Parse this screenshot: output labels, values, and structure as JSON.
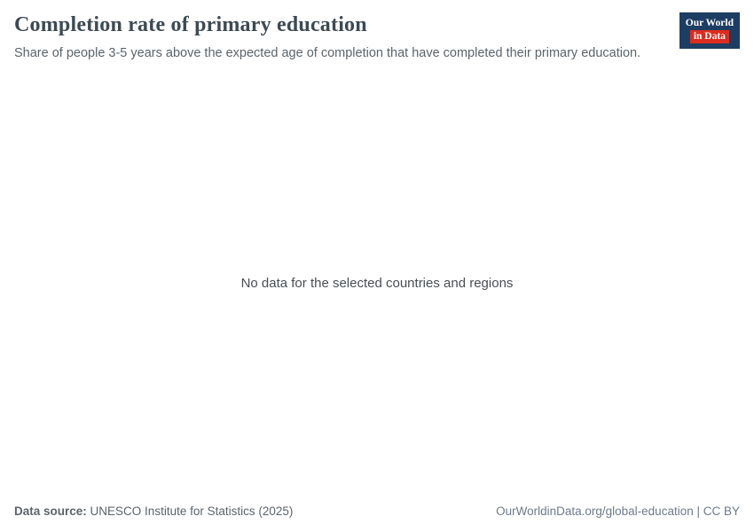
{
  "header": {
    "title": "Completion rate of primary education",
    "subtitle": "Share of people 3-5 years above the expected age of completion that have completed their primary education.",
    "logo": {
      "line1": "Our World",
      "line2": "in Data"
    }
  },
  "main": {
    "empty_message": "No data for the selected countries and regions"
  },
  "footer": {
    "source_label": "Data source:",
    "source_value": "UNESCO Institute for Statistics (2025)",
    "link": "OurWorldinData.org/global-education | CC BY"
  },
  "colors": {
    "logo_blue": "#1d3d63",
    "logo_red": "#dc2c1e",
    "title_color": "#3d4a54",
    "subtitle_color": "#5b646b",
    "link_color": "#6d7b8a"
  },
  "chart_data": {
    "type": "line",
    "title": "Completion rate of primary education",
    "subtitle": "Share of people 3-5 years above the expected age of completion that have completed their primary education.",
    "series": [],
    "categories": [],
    "annotations": [
      "No data for the selected countries and regions"
    ],
    "note": "Chart area is empty; no data rendered for the selected countries and regions."
  }
}
